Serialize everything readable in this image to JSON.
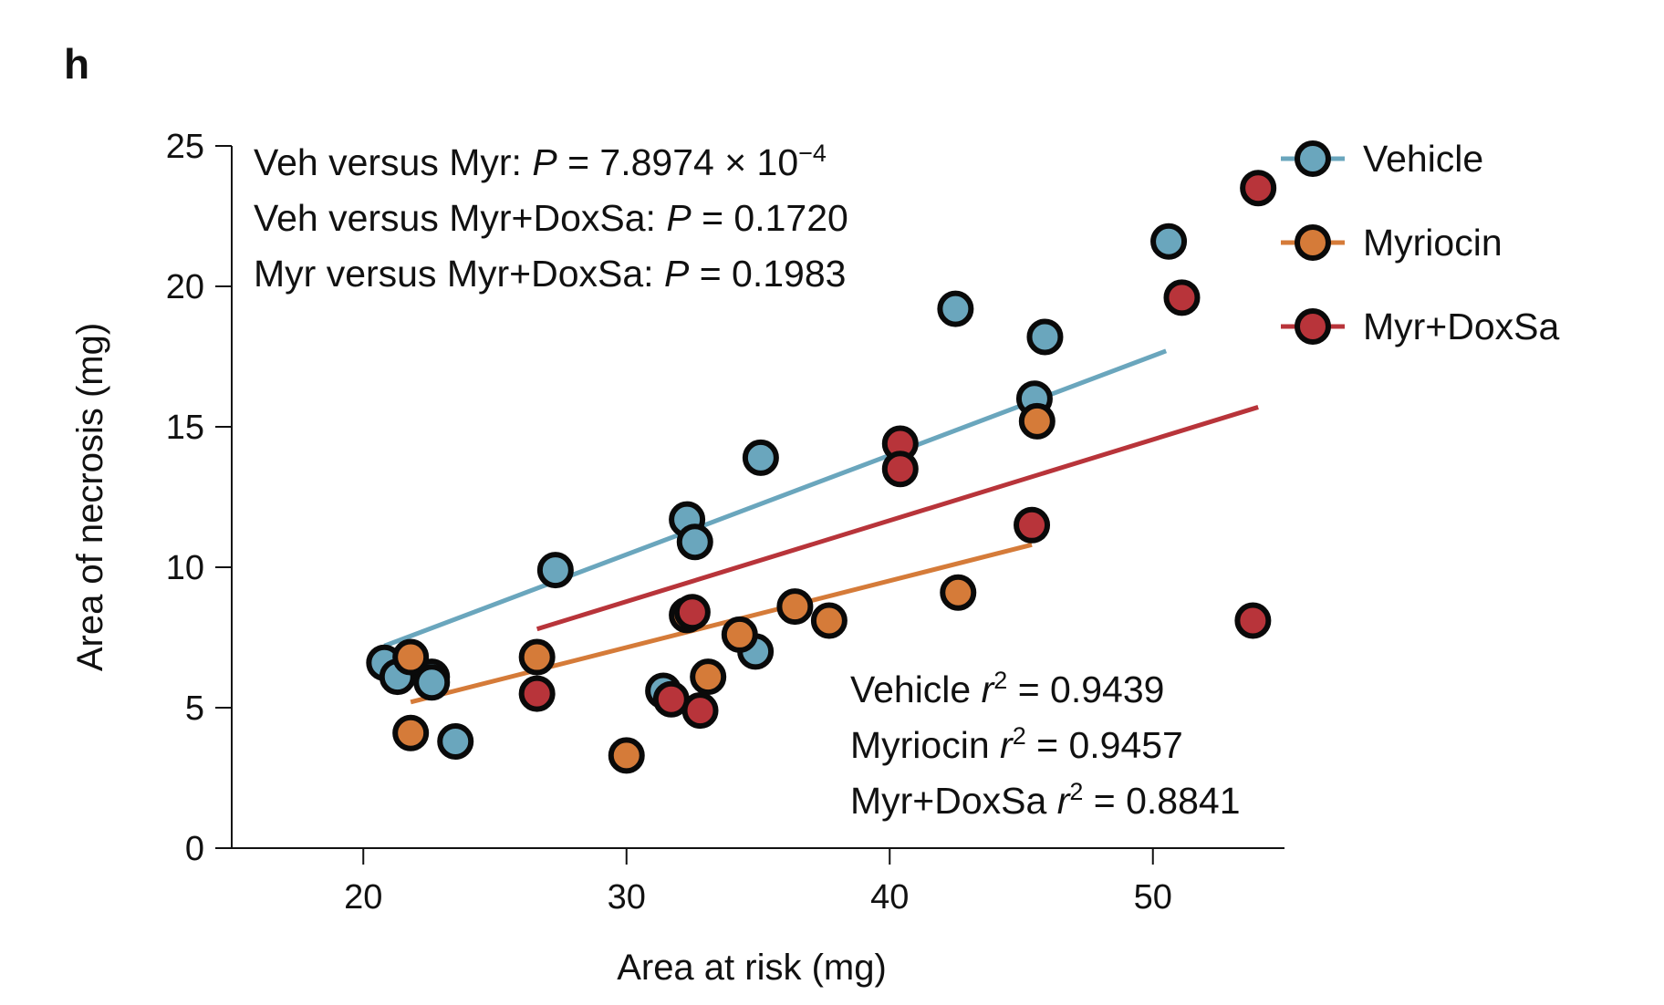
{
  "panel_label": "h",
  "colors": {
    "vehicle": "#6aa6bd",
    "myriocin": "#d57b39",
    "myr_doxsa": "#b8343a",
    "outline": "#0a0a0a"
  },
  "chart_data": {
    "type": "scatter",
    "xlabel": "Area at risk (mg)",
    "ylabel": "Area of necrosis (mg)",
    "xlim": [
      15,
      55
    ],
    "ylim": [
      0,
      25
    ],
    "xticks": [
      20,
      30,
      40,
      50
    ],
    "yticks": [
      0,
      5,
      10,
      15,
      20,
      25
    ],
    "legend_position": "top-right",
    "series": [
      {
        "name": "Vehicle",
        "color": "#6aa6bd",
        "points": [
          [
            20.8,
            6.6
          ],
          [
            21.3,
            6.1
          ],
          [
            22.6,
            6.1
          ],
          [
            22.6,
            5.9
          ],
          [
            23.5,
            3.8
          ],
          [
            27.3,
            9.9
          ],
          [
            31.4,
            5.6
          ],
          [
            32.3,
            11.7
          ],
          [
            32.6,
            10.9
          ],
          [
            34.9,
            7.0
          ],
          [
            35.1,
            13.9
          ],
          [
            42.5,
            19.2
          ],
          [
            45.5,
            16.0
          ],
          [
            45.9,
            18.2
          ],
          [
            50.6,
            21.6
          ]
        ],
        "fit": {
          "x": [
            20.8,
            50.5
          ],
          "y": [
            7.2,
            17.7
          ]
        }
      },
      {
        "name": "Myriocin",
        "color": "#d57b39",
        "points": [
          [
            21.8,
            6.8
          ],
          [
            21.8,
            4.1
          ],
          [
            26.6,
            6.8
          ],
          [
            30.0,
            3.3
          ],
          [
            32.3,
            8.3
          ],
          [
            33.1,
            6.1
          ],
          [
            34.3,
            7.6
          ],
          [
            36.4,
            8.6
          ],
          [
            37.7,
            8.1
          ],
          [
            42.6,
            9.1
          ],
          [
            45.6,
            15.2
          ]
        ],
        "fit": {
          "x": [
            21.8,
            45.4
          ],
          "y": [
            5.2,
            10.8
          ]
        }
      },
      {
        "name": "Myr+DoxSa",
        "color": "#b8343a",
        "points": [
          [
            26.6,
            5.5
          ],
          [
            31.7,
            5.3
          ],
          [
            32.8,
            4.9
          ],
          [
            32.5,
            8.4
          ],
          [
            40.4,
            14.4
          ],
          [
            40.4,
            13.5
          ],
          [
            45.4,
            11.5
          ],
          [
            51.1,
            19.6
          ],
          [
            53.8,
            8.1
          ],
          [
            54.0,
            23.5
          ]
        ],
        "fit": {
          "x": [
            26.6,
            54.0
          ],
          "y": [
            7.8,
            15.7
          ]
        }
      }
    ],
    "annotations_top": [
      {
        "prefix": "Veh versus Myr: ",
        "p": "P",
        "value": " = 7.8974 × 10",
        "sup": "−4"
      },
      {
        "prefix": "Veh versus Myr+DoxSa: ",
        "p": "P",
        "value": " = 0.1720",
        "sup": ""
      },
      {
        "prefix": "Myr versus Myr+DoxSa: ",
        "p": "P",
        "value": " = 0.1983",
        "sup": ""
      }
    ],
    "annotations_bottom": [
      {
        "prefix": "Vehicle ",
        "r": "r",
        "sup": "2",
        "value": " = 0.9439"
      },
      {
        "prefix": "Myriocin ",
        "r": "r",
        "sup": "2",
        "value": " = 0.9457"
      },
      {
        "prefix": "Myr+DoxSa ",
        "r": "r",
        "sup": "2",
        "value": " = 0.8841"
      }
    ]
  }
}
